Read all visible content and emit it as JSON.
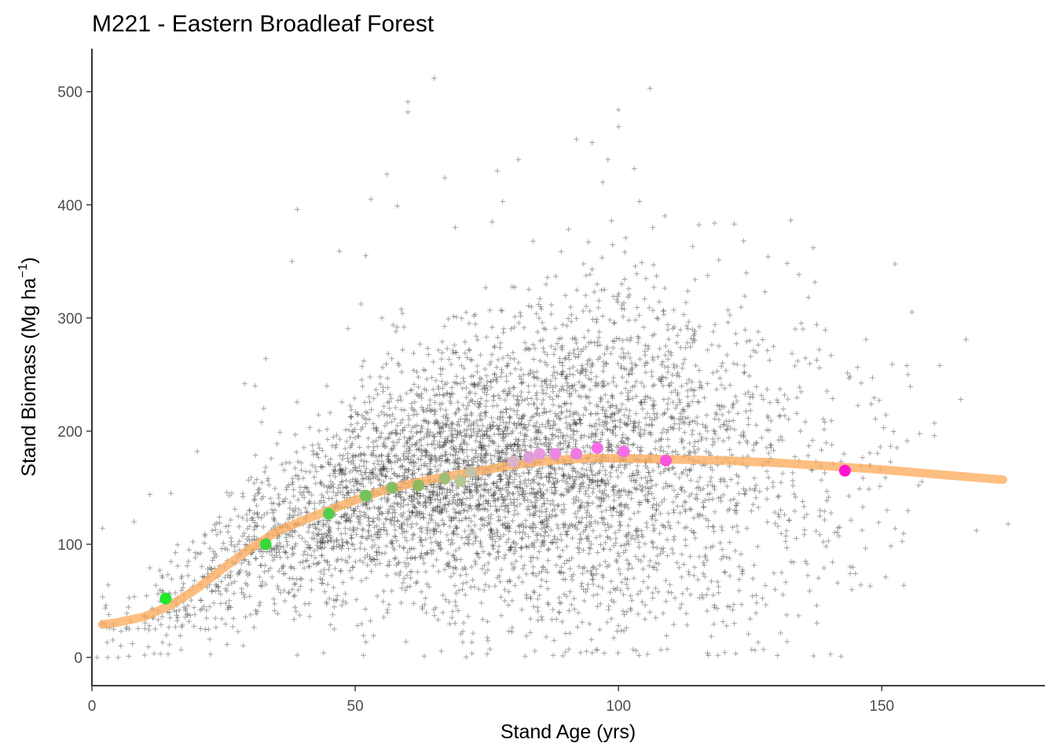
{
  "chart_data": {
    "type": "scatter",
    "title": "M221 - Eastern Broadleaf Forest",
    "xlabel": "Stand Age (yrs)",
    "ylabel_parts": {
      "before": "Stand Biomass (Mg ha",
      "superscript": "−1",
      "after": ")"
    },
    "xlim": [
      0,
      181
    ],
    "ylim": [
      -25,
      538
    ],
    "x_ticks": [
      0,
      50,
      100,
      150
    ],
    "y_ticks": [
      0,
      100,
      200,
      300,
      400,
      500
    ],
    "grid": false,
    "legend": "none",
    "plot_points": {
      "marker": "+",
      "color": "#333333",
      "note_count": 0,
      "outliers": [
        {
          "x": 65,
          "y": 512
        },
        {
          "x": 106,
          "y": 503
        },
        {
          "x": 60,
          "y": 491
        },
        {
          "x": 60,
          "y": 482
        },
        {
          "x": 100,
          "y": 484
        },
        {
          "x": 100,
          "y": 469
        },
        {
          "x": 92,
          "y": 458
        },
        {
          "x": 95,
          "y": 455
        },
        {
          "x": 98,
          "y": 440
        },
        {
          "x": 81,
          "y": 440
        },
        {
          "x": 103,
          "y": 432
        },
        {
          "x": 56,
          "y": 427
        },
        {
          "x": 67,
          "y": 424
        },
        {
          "x": 77,
          "y": 430
        },
        {
          "x": 97,
          "y": 420
        },
        {
          "x": 53,
          "y": 405
        },
        {
          "x": 39,
          "y": 396
        },
        {
          "x": 58,
          "y": 399
        },
        {
          "x": 78,
          "y": 403
        },
        {
          "x": 104,
          "y": 403
        },
        {
          "x": 76,
          "y": 385
        },
        {
          "x": 69,
          "y": 380
        },
        {
          "x": 122,
          "y": 383
        },
        {
          "x": 47,
          "y": 359
        },
        {
          "x": 52,
          "y": 355
        },
        {
          "x": 137,
          "y": 362
        },
        {
          "x": 38,
          "y": 350
        },
        {
          "x": 33,
          "y": 264
        },
        {
          "x": 29,
          "y": 242
        },
        {
          "x": 31,
          "y": 240
        },
        {
          "x": 20,
          "y": 182
        },
        {
          "x": 15,
          "y": 145
        },
        {
          "x": 11,
          "y": 144
        },
        {
          "x": 2,
          "y": 114
        },
        {
          "x": 8,
          "y": 120
        },
        {
          "x": 46,
          "y": 25
        },
        {
          "x": 44,
          "y": 4
        },
        {
          "x": 39,
          "y": 2
        },
        {
          "x": 1,
          "y": 0
        },
        {
          "x": 3,
          "y": 0
        },
        {
          "x": 5,
          "y": 0
        },
        {
          "x": 7,
          "y": 1
        },
        {
          "x": 10,
          "y": 2
        },
        {
          "x": 13,
          "y": 3
        },
        {
          "x": 147,
          "y": 281
        },
        {
          "x": 166,
          "y": 281
        },
        {
          "x": 152,
          "y": 259
        },
        {
          "x": 155,
          "y": 250
        },
        {
          "x": 161,
          "y": 258
        },
        {
          "x": 165,
          "y": 228
        },
        {
          "x": 148,
          "y": 224
        },
        {
          "x": 160,
          "y": 207
        },
        {
          "x": 160,
          "y": 196
        },
        {
          "x": 168,
          "y": 112
        },
        {
          "x": 174,
          "y": 118
        },
        {
          "x": 151,
          "y": 130
        },
        {
          "x": 144,
          "y": 80
        },
        {
          "x": 145,
          "y": 74
        },
        {
          "x": 146,
          "y": 64
        },
        {
          "x": 131,
          "y": 75
        },
        {
          "x": 138,
          "y": 70
        },
        {
          "x": 125,
          "y": 34
        },
        {
          "x": 122,
          "y": 30
        },
        {
          "x": 100,
          "y": 28
        },
        {
          "x": 112,
          "y": 47
        },
        {
          "x": 118,
          "y": 55
        },
        {
          "x": 96,
          "y": 45
        }
      ]
    },
    "curve": {
      "color": "#fdae61",
      "x": [
        2,
        5,
        10,
        15,
        20,
        25,
        30,
        35,
        40,
        45,
        50,
        55,
        60,
        65,
        70,
        75,
        80,
        85,
        90,
        95,
        100,
        110,
        120,
        130,
        140,
        150,
        160,
        173
      ],
      "y": [
        29,
        31,
        36,
        46,
        61,
        79,
        96,
        111,
        121,
        130,
        139,
        147,
        153,
        158,
        162,
        166,
        170,
        173,
        175,
        176,
        176,
        175,
        174,
        172,
        169,
        166,
        162,
        157
      ]
    },
    "binned_means": {
      "x": [
        14,
        33,
        45,
        52,
        57,
        62,
        67,
        70,
        72,
        80,
        83,
        85,
        88,
        92,
        96,
        101,
        109,
        143
      ],
      "y": [
        52,
        100,
        127,
        143,
        150,
        152,
        158,
        156,
        164,
        173,
        177,
        180,
        180,
        180,
        185,
        182,
        174,
        165
      ],
      "colors": [
        "#1fe82a",
        "#39d83a",
        "#52cc4a",
        "#70c45b",
        "#86bd62",
        "#92b85f",
        "#a0be76",
        "#b5c793",
        "#c4c3a8",
        "#d9b3c9",
        "#df9fd6",
        "#e79ae2",
        "#ec87e0",
        "#ef78e1",
        "#f56ee3",
        "#f56ce7",
        "#f655d9",
        "#ff14d2"
      ]
    }
  }
}
